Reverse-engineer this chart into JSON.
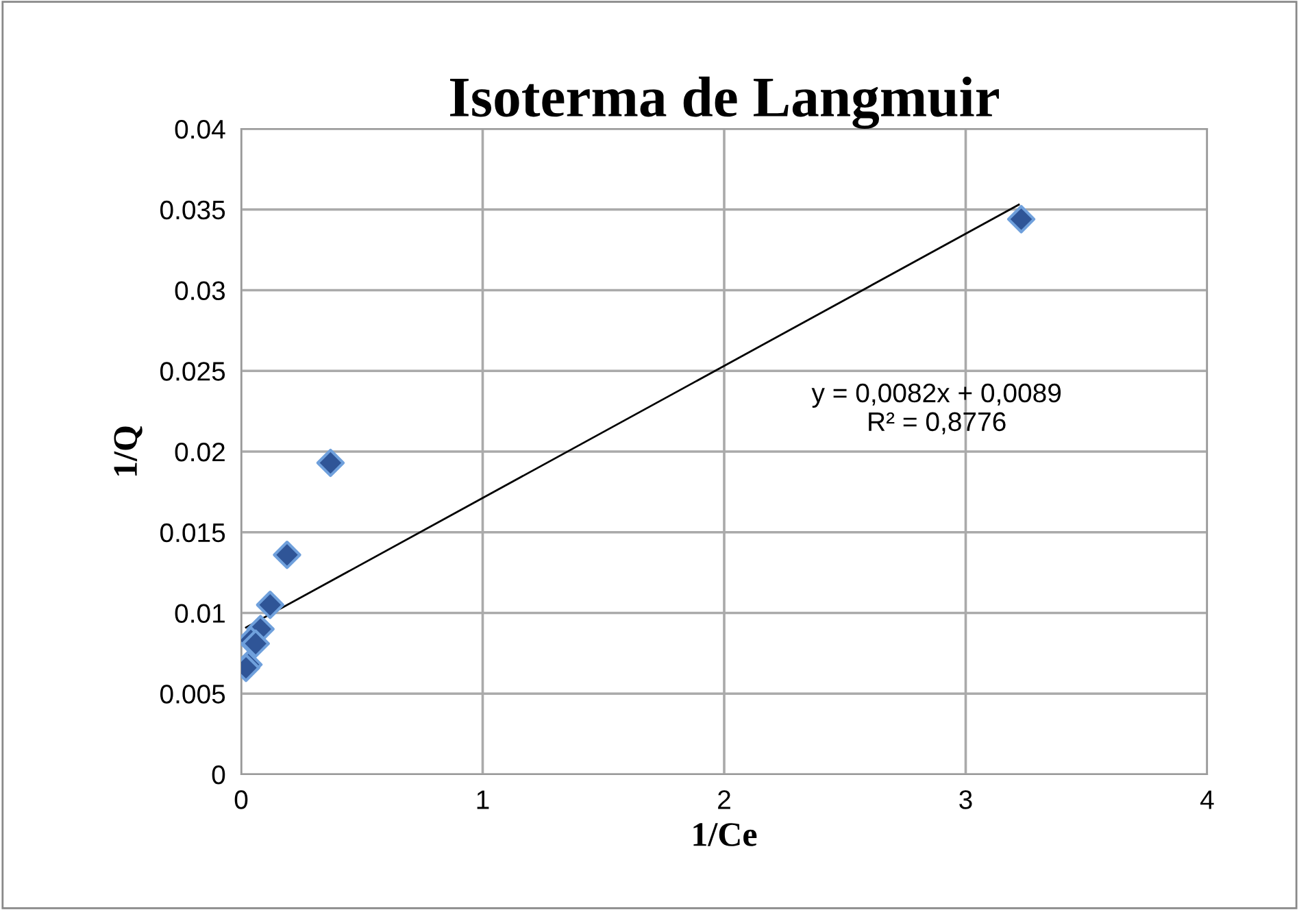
{
  "chart_data": {
    "type": "scatter",
    "title": "Isoterma de Langmuir",
    "xlabel": "1/Ce",
    "ylabel": "1/Q",
    "series": [
      {
        "color": "#2f5597",
        "marker": "diamond",
        "x": [
          3.23,
          0.37,
          0.19,
          0.12,
          0.08,
          0.04,
          0.06,
          0.03,
          0.02
        ],
        "values": [
          0.0344,
          0.0193,
          0.0136,
          0.0105,
          0.009,
          0.0083,
          0.0081,
          0.0068,
          0.0066
        ]
      },
      {
        "type": "line",
        "color": "#000000",
        "marker": "none",
        "line_style": "solid",
        "x": [
          0.02,
          3.22
        ],
        "values": [
          0.0091,
          0.0353
        ]
      }
    ],
    "annotations": [
      "y = 0,0082x + 0,0089\nR² = 0,8776"
    ],
    "xlim": [
      0,
      4
    ],
    "xticks": [
      0,
      1,
      2,
      3,
      4
    ],
    "ylim": [
      0,
      0.04
    ],
    "yticks": [
      {
        "value": 0,
        "label": "0"
      },
      0.005,
      {
        "value": 0.01,
        "label": "0.01"
      },
      0.015,
      {
        "value": 0.02,
        "label": "0.02"
      },
      0.025,
      {
        "value": 0.03,
        "label": "0.03"
      },
      0.035,
      {
        "value": 0.04,
        "label": "0.04"
      }
    ],
    "grid": true,
    "legend": false
  }
}
